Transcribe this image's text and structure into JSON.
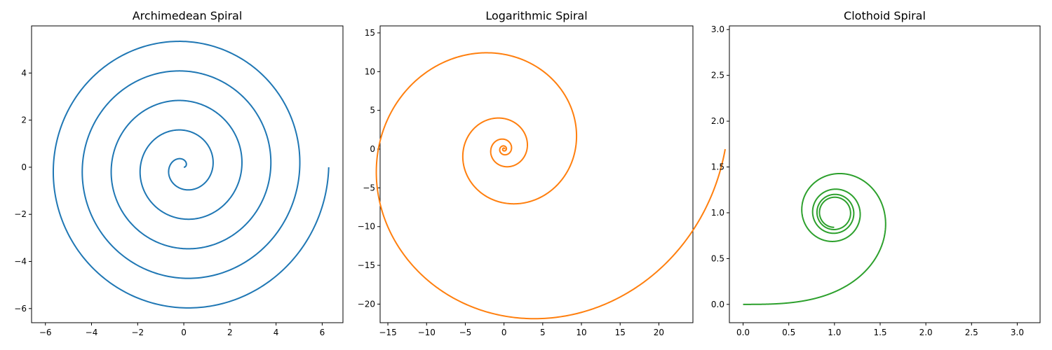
{
  "chart_data": [
    {
      "type": "line",
      "title": "Archimedean Spiral",
      "xlabel": "",
      "ylabel": "",
      "xlim": [
        -6.6,
        6.9
      ],
      "ylim": [
        -6.6,
        6.0
      ],
      "xticks": [
        -6,
        -4,
        -2,
        0,
        2,
        4,
        6
      ],
      "xtick_labels": [
        "−6",
        "−4",
        "−2",
        "0",
        "2",
        "4",
        "6"
      ],
      "yticks": [
        -6,
        -4,
        -2,
        0,
        2,
        4
      ],
      "ytick_labels": [
        "−6",
        "−4",
        "−2",
        "0",
        "2",
        "4"
      ],
      "series": [
        {
          "color": "#1f77b4",
          "equation": "r = 0.2·θ",
          "theta_range": [
            0,
            31.416
          ]
        }
      ],
      "grid": false,
      "legend": "none"
    },
    {
      "type": "line",
      "title": "Logarithmic Spiral",
      "xlabel": "",
      "ylabel": "",
      "xlim": [
        -16.0,
        24.4
      ],
      "ylim": [
        -22.4,
        15.9
      ],
      "xticks": [
        -15,
        -10,
        -5,
        0,
        5,
        10,
        15,
        20
      ],
      "xtick_labels": [
        "−15",
        "−10",
        "−5",
        "0",
        "5",
        "10",
        "15",
        "20"
      ],
      "yticks": [
        -20,
        -15,
        -10,
        -5,
        0,
        5,
        10,
        15
      ],
      "ytick_labels": [
        "−20",
        "−15",
        "−10",
        "−5",
        "0",
        "5",
        "10",
        "15"
      ],
      "series": [
        {
          "color": "#ff7f0e",
          "equation": "r = 0.1·e^(0.18·θ)",
          "theta_range": [
            0,
            31.416
          ]
        }
      ],
      "grid": false,
      "legend": "none"
    },
    {
      "type": "line",
      "title": "Clothoid Spiral",
      "xlabel": "",
      "ylabel": "",
      "xlim": [
        -0.15,
        3.25
      ],
      "ylim": [
        -0.2,
        3.04
      ],
      "xticks": [
        0.0,
        0.5,
        1.0,
        1.5,
        2.0,
        2.5,
        3.0
      ],
      "xtick_labels": [
        "0.0",
        "0.5",
        "1.0",
        "1.5",
        "2.0",
        "2.5",
        "3.0"
      ],
      "yticks": [
        0.0,
        0.5,
        1.0,
        1.5,
        2.0,
        2.5,
        3.0
      ],
      "ytick_labels": [
        "0.0",
        "0.5",
        "1.0",
        "1.5",
        "2.0",
        "2.5",
        "3.0"
      ],
      "series": [
        {
          "color": "#2ca02c",
          "equation": "x = ∫cos(πt²/2)dt, y = ∫sin(πt²/2)dt, scaled by 2",
          "t_range": [
            0,
            4
          ]
        }
      ],
      "grid": false,
      "legend": "none"
    }
  ]
}
